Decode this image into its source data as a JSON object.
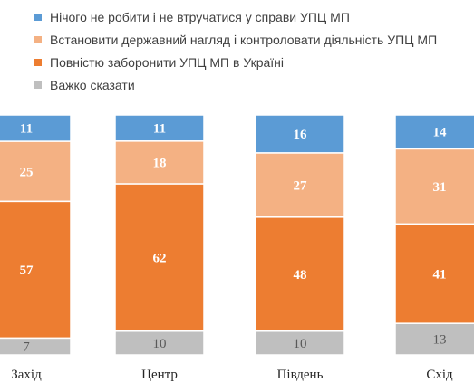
{
  "chart_data": {
    "type": "bar",
    "stacked": true,
    "categories": [
      "Захід",
      "Центр",
      "Південь",
      "Схід"
    ],
    "series": [
      {
        "name": "Нічого не робити і не втручатися у справи УПЦ МП",
        "color": "#5B9BD5",
        "label_color": "#ffffff",
        "values": [
          11,
          11,
          16,
          14
        ]
      },
      {
        "name": "Встановити державний нагляд і контроловати діяльність УПЦ МП",
        "color": "#F4B183",
        "label_color": "#ffffff",
        "values": [
          25,
          18,
          27,
          31
        ]
      },
      {
        "name": "Повністю заборонити УПЦ МП в Україні",
        "color": "#ED7D31",
        "label_color": "#ffffff",
        "values": [
          57,
          62,
          48,
          41
        ]
      },
      {
        "name": "Важко сказати",
        "color": "#BFBFBF",
        "label_color": "#595959",
        "values": [
          7,
          10,
          10,
          13
        ]
      }
    ],
    "legend_position": "top",
    "grid": false
  }
}
